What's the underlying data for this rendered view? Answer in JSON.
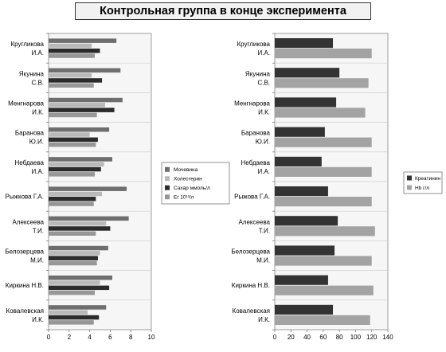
{
  "title": "Контрольная группа в конце эксперимента",
  "chart_data": [
    {
      "type": "bar",
      "orientation": "horizontal",
      "categories": [
        [
          "Кругликова",
          "И.А."
        ],
        [
          "Якунина",
          "С.В."
        ],
        [
          "Менгнарова",
          "И.К."
        ],
        [
          "Баранова",
          "Ю.И."
        ],
        [
          "Небдаева",
          "И.А."
        ],
        [
          "Рыжкова Г.А."
        ],
        [
          "Алексеева",
          "Т.И."
        ],
        [
          "Белозерцева",
          "М.И."
        ],
        [
          "Киркина Н.В."
        ],
        [
          "Ковалевская",
          "И.К."
        ]
      ],
      "series": [
        {
          "name": "Мочевина",
          "color": "#6e6e6e",
          "values": [
            6.6,
            7.0,
            7.2,
            5.9,
            6.2,
            7.6,
            7.8,
            5.8,
            6.2,
            5.6
          ]
        },
        {
          "name": "Холестерин",
          "color": "#b9b9b9",
          "values": [
            4.2,
            4.2,
            5.5,
            4.0,
            5.4,
            5.2,
            5.6,
            5.0,
            5.0,
            3.8
          ]
        },
        {
          "name": "Сахар ммоль/л",
          "color": "#2b2b2b",
          "values": [
            5.0,
            5.2,
            6.4,
            4.8,
            5.1,
            4.6,
            6.0,
            4.8,
            5.9,
            4.9
          ]
        },
        {
          "name": "Er 10¹²/л",
          "color": "#979797",
          "values": [
            4.5,
            4.4,
            4.7,
            4.6,
            4.5,
            4.4,
            4.6,
            4.7,
            4.5,
            4.4
          ]
        }
      ],
      "xlim": [
        0,
        10
      ],
      "xticks": [
        0,
        2,
        4,
        6,
        8,
        10
      ],
      "grid": false,
      "legend": "right"
    },
    {
      "type": "bar",
      "orientation": "horizontal",
      "categories": [
        [
          "Кругликова",
          "И.А."
        ],
        [
          "Якунина",
          "С.В."
        ],
        [
          "Менгнарова",
          "И.К."
        ],
        [
          "Баранова",
          "Ю.И."
        ],
        [
          "Небдаева",
          "И.А."
        ],
        [
          "Рыжова Г.А."
        ],
        [
          "Алексеева",
          "Т.И."
        ],
        [
          "Белозерцева",
          "М.И."
        ],
        [
          "Киркина Н.В."
        ],
        [
          "Ковалевская",
          "И.К."
        ]
      ],
      "series": [
        {
          "name": "Креатинин",
          "color": "#333333",
          "values": [
            72,
            80,
            76,
            62,
            58,
            66,
            78,
            74,
            66,
            72
          ]
        },
        {
          "name": "Hb г/л",
          "color": "#a3a3a3",
          "values": [
            120,
            116,
            112,
            120,
            120,
            120,
            124,
            120,
            122,
            118
          ]
        }
      ],
      "xlim": [
        0,
        140
      ],
      "xticks": [
        0,
        20,
        40,
        60,
        80,
        100,
        120,
        140
      ],
      "grid": false,
      "legend": "right"
    }
  ]
}
